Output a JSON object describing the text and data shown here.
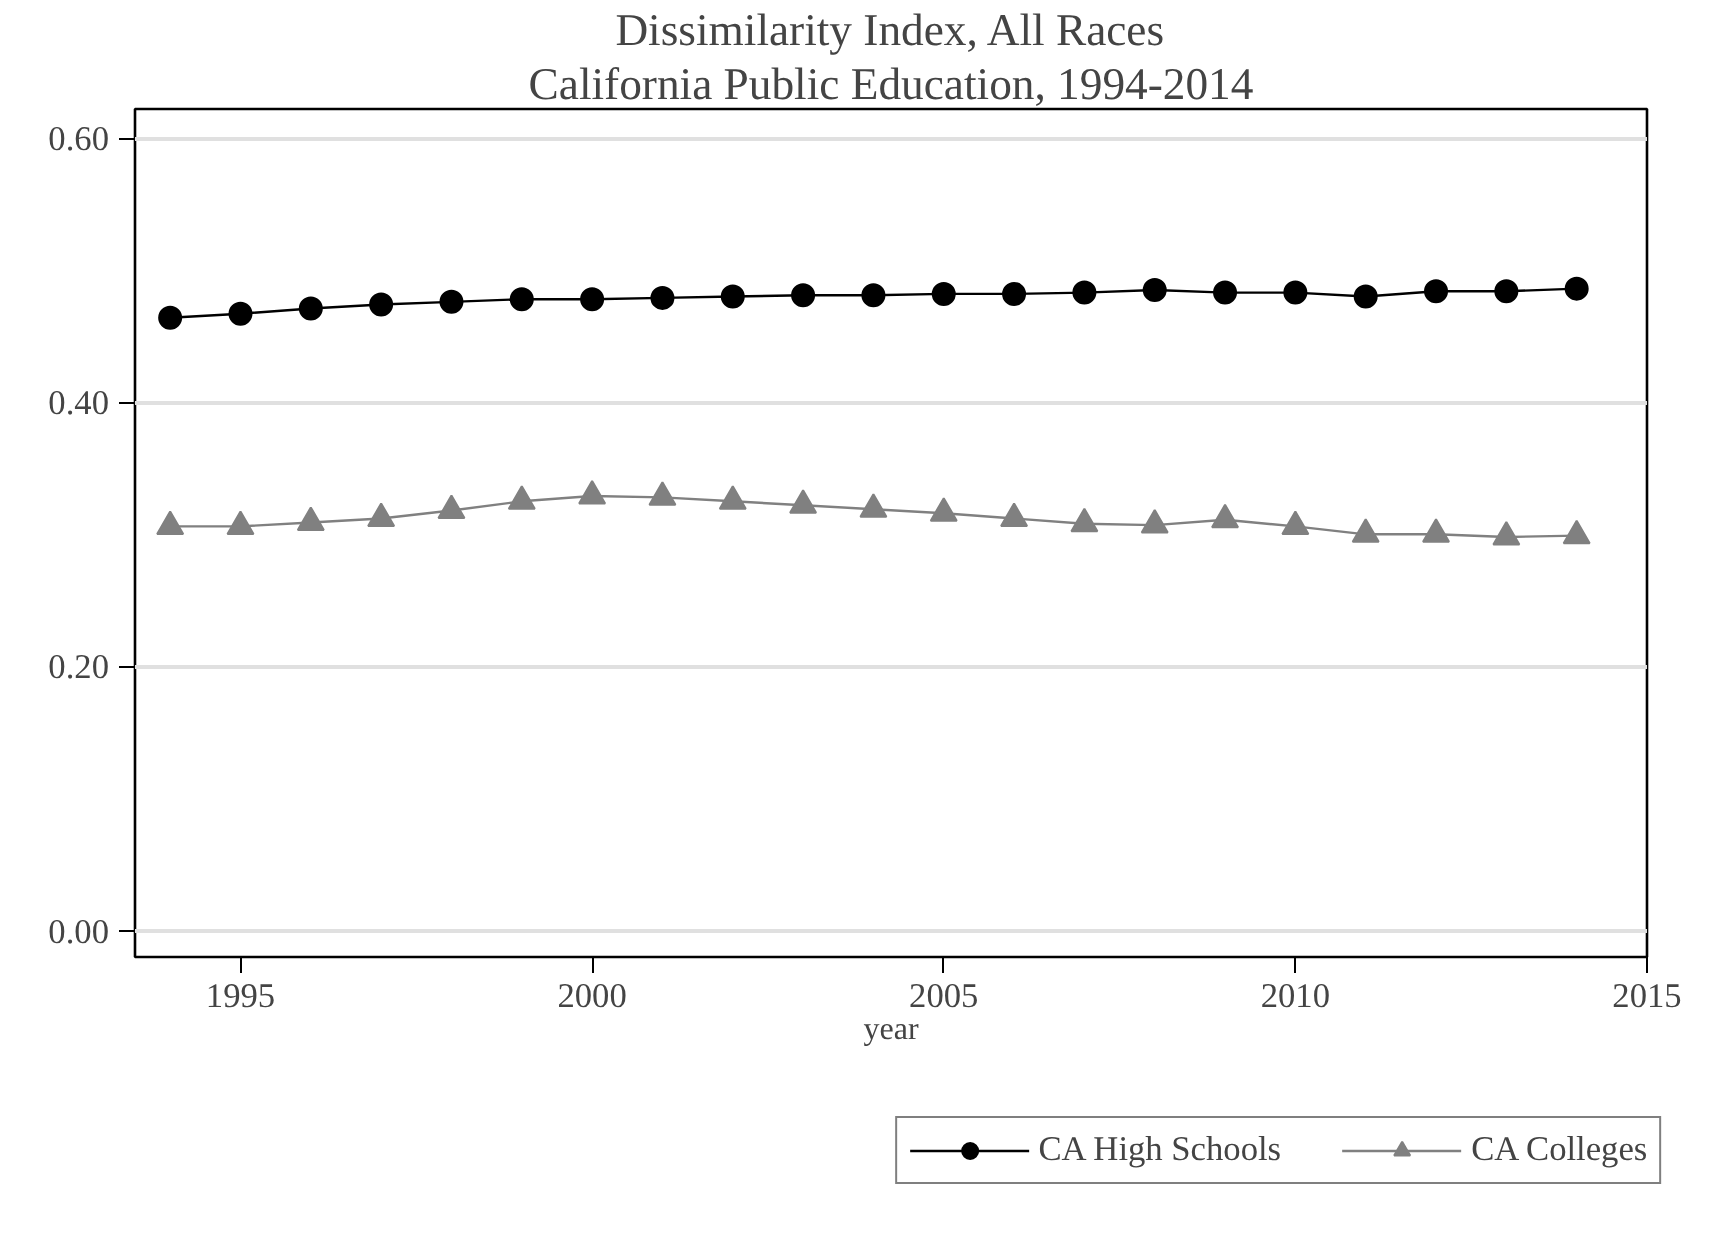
{
  "chart_data": {
    "type": "line",
    "title": "Dissimilarity Index, All Races",
    "subtitle": "California Public Education, 1994-2014",
    "xlabel": "year",
    "x": [
      1994,
      1995,
      1996,
      1997,
      1998,
      1999,
      2000,
      2001,
      2002,
      2003,
      2004,
      2005,
      2006,
      2007,
      2008,
      2009,
      2010,
      2011,
      2012,
      2013,
      2014
    ],
    "series": [
      {
        "name": "CA High Schools",
        "color": "#000000",
        "marker": "circle",
        "values": [
          0.464,
          0.467,
          0.471,
          0.474,
          0.476,
          0.478,
          0.478,
          0.479,
          0.48,
          0.481,
          0.481,
          0.482,
          0.482,
          0.483,
          0.485,
          0.483,
          0.483,
          0.48,
          0.484,
          0.484,
          0.486
        ]
      },
      {
        "name": "CA Colleges",
        "color": "#808080",
        "marker": "triangle",
        "values": [
          0.306,
          0.306,
          0.309,
          0.312,
          0.318,
          0.325,
          0.329,
          0.328,
          0.325,
          0.322,
          0.319,
          0.316,
          0.312,
          0.308,
          0.307,
          0.311,
          0.306,
          0.3,
          0.3,
          0.298,
          0.299
        ]
      }
    ],
    "xlim": [
      1993.5,
      2015
    ],
    "xticks": [
      1995,
      2000,
      2005,
      2010,
      2015
    ],
    "ylim": [
      -0.02,
      0.622
    ],
    "yticks": [
      {
        "value": 0,
        "label": "0.00"
      },
      {
        "value": 0.2,
        "label": "0.20"
      },
      {
        "value": 0.4,
        "label": "0.40"
      },
      {
        "value": 0.6,
        "label": "0.60"
      }
    ],
    "grid": "y",
    "legend": "bottom",
    "line_style": "solid"
  }
}
